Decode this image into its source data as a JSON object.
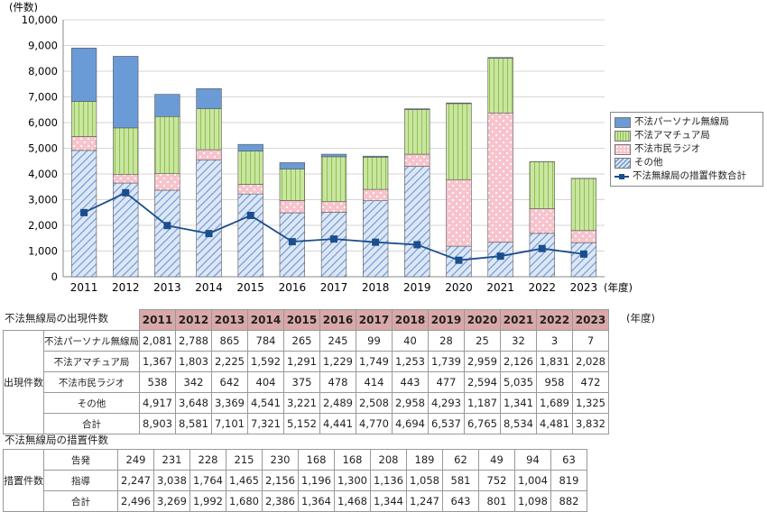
{
  "chart_data": {
    "type": "bar",
    "stacked": true,
    "unit_label": "(件数)",
    "x_unit": "(年度)",
    "categories": [
      "2011",
      "2012",
      "2013",
      "2014",
      "2015",
      "2016",
      "2017",
      "2018",
      "2019",
      "2020",
      "2021",
      "2022",
      "2023"
    ],
    "ylim": [
      0,
      10000
    ],
    "yticks": [
      "0",
      "1,000",
      "2,000",
      "3,000",
      "4,000",
      "5,000",
      "6,000",
      "7,000",
      "8,000",
      "9,000",
      "10,000"
    ],
    "grid": true,
    "legend_position": "right",
    "series": [
      {
        "name": "不法パーソナル無線局",
        "values": [
          2081,
          2788,
          865,
          784,
          265,
          245,
          99,
          40,
          28,
          25,
          32,
          3,
          7
        ],
        "color": "#6b9bd6"
      },
      {
        "name": "不法アマチュア局",
        "values": [
          1367,
          1803,
          2225,
          1592,
          1291,
          1229,
          1749,
          1253,
          1739,
          2959,
          2126,
          1831,
          2028
        ],
        "color": "#c5e397"
      },
      {
        "name": "不法市民ラジオ",
        "values": [
          538,
          342,
          642,
          404,
          375,
          478,
          414,
          443,
          477,
          2594,
          5035,
          958,
          472
        ],
        "color": "#f7c3cc"
      },
      {
        "name": "その他",
        "values": [
          4917,
          3648,
          3369,
          4541,
          3221,
          2489,
          2508,
          2958,
          4293,
          1187,
          1341,
          1689,
          1325
        ],
        "color": "#c7daf3"
      }
    ],
    "line_series": {
      "name": "不法無線局の措置件数合計",
      "values": [
        2496,
        3269,
        1992,
        1680,
        2386,
        1364,
        1468,
        1344,
        1247,
        643,
        801,
        1098,
        882
      ],
      "color": "#1a4e8c"
    }
  },
  "table1": {
    "title": "不法無線局の出現件数",
    "group_label": "出現件数",
    "unit": "(年度)",
    "years": [
      "2011",
      "2012",
      "2013",
      "2014",
      "2015",
      "2016",
      "2017",
      "2018",
      "2019",
      "2020",
      "2021",
      "2022",
      "2023"
    ],
    "rows": [
      {
        "label": "不法パーソナル無線局",
        "values": [
          "2,081",
          "2,788",
          "865",
          "784",
          "265",
          "245",
          "99",
          "40",
          "28",
          "25",
          "32",
          "3",
          "7"
        ]
      },
      {
        "label": "不法アマチュア局",
        "values": [
          "1,367",
          "1,803",
          "2,225",
          "1,592",
          "1,291",
          "1,229",
          "1,749",
          "1,253",
          "1,739",
          "2,959",
          "2,126",
          "1,831",
          "2,028"
        ]
      },
      {
        "label": "不法市民ラジオ",
        "values": [
          "538",
          "342",
          "642",
          "404",
          "375",
          "478",
          "414",
          "443",
          "477",
          "2,594",
          "5,035",
          "958",
          "472"
        ]
      },
      {
        "label": "その他",
        "values": [
          "4,917",
          "3,648",
          "3,369",
          "4,541",
          "3,221",
          "2,489",
          "2,508",
          "2,958",
          "4,293",
          "1,187",
          "1,341",
          "1,689",
          "1,325"
        ]
      },
      {
        "label": "合計",
        "values": [
          "8,903",
          "8,581",
          "7,101",
          "7,321",
          "5,152",
          "4,441",
          "4,770",
          "4,694",
          "6,537",
          "6,765",
          "8,534",
          "4,481",
          "3,832"
        ]
      }
    ]
  },
  "table2": {
    "title": "不法無線局の措置件数",
    "group_label": "措置件数",
    "rows": [
      {
        "label": "告発",
        "values": [
          "249",
          "231",
          "228",
          "215",
          "230",
          "168",
          "168",
          "208",
          "189",
          "62",
          "49",
          "94",
          "63"
        ]
      },
      {
        "label": "指導",
        "values": [
          "2,247",
          "3,038",
          "1,764",
          "1,465",
          "2,156",
          "1,196",
          "1,300",
          "1,136",
          "1,058",
          "581",
          "752",
          "1,004",
          "819"
        ]
      },
      {
        "label": "合計",
        "values": [
          "2,496",
          "3,269",
          "1,992",
          "1,680",
          "2,386",
          "1,364",
          "1,468",
          "1,344",
          "1,247",
          "643",
          "801",
          "1,098",
          "882"
        ]
      }
    ]
  }
}
